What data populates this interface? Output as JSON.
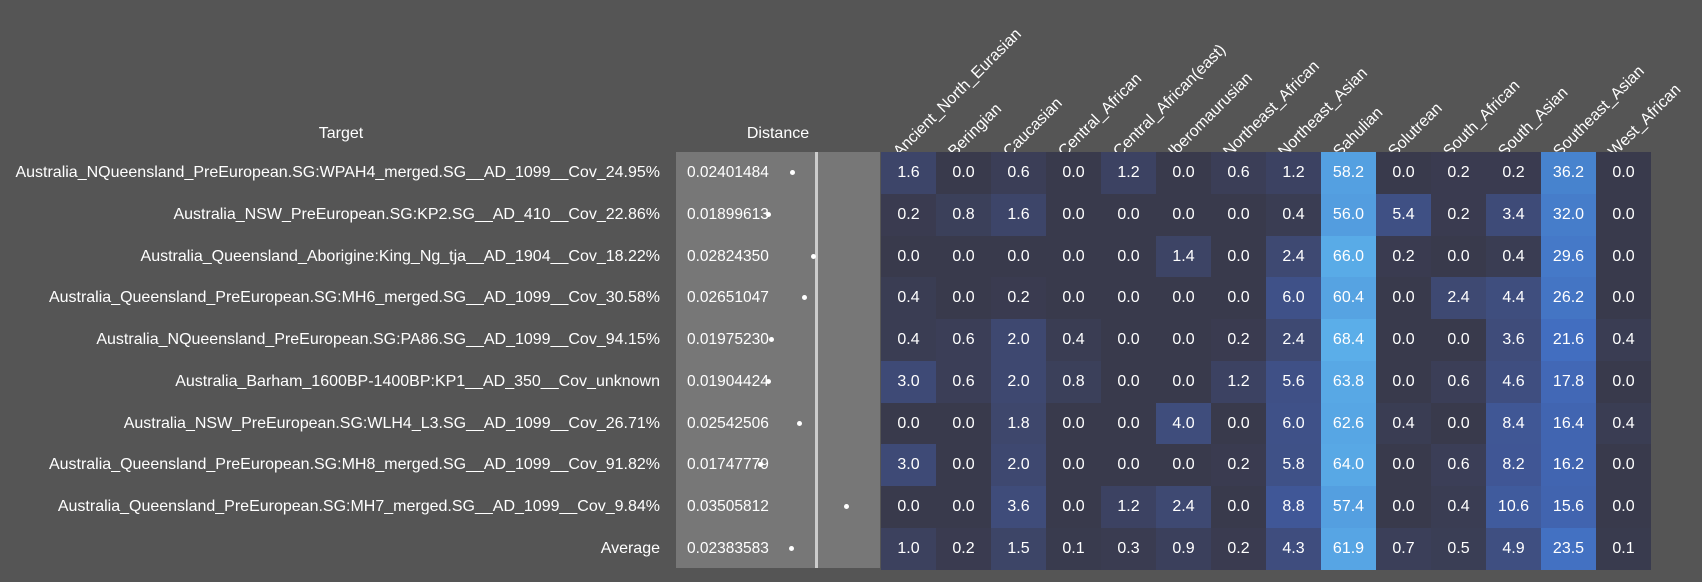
{
  "headers": {
    "target": "Target",
    "distance": "Distance"
  },
  "columns": [
    "Ancient_North_Eurasian",
    "Beringian",
    "Caucasian",
    "Central_African",
    "Central_African(east)",
    "Iberomaurusian",
    "Northeast_African",
    "Northeast_Asian",
    "Sahulian",
    "Solutrean",
    "South_African",
    "South_Asian",
    "Southeast_Asian",
    "West_African"
  ],
  "distance_axis": {
    "min": 0.0,
    "max": 0.042
  },
  "rows": [
    {
      "target": "Australia_NQueensland_PreEuropean.SG:WPAH4_merged.SG__AD_1099__Cov_24.95%",
      "distance": "0.02401484",
      "values": [
        "1.6",
        "0.0",
        "0.6",
        "0.0",
        "1.2",
        "0.0",
        "0.6",
        "1.2",
        "58.2",
        "0.0",
        "0.2",
        "0.2",
        "36.2",
        "0.0"
      ]
    },
    {
      "target": "Australia_NSW_PreEuropean.SG:KP2.SG__AD_410__Cov_22.86%",
      "distance": "0.01899613",
      "values": [
        "0.2",
        "0.8",
        "1.6",
        "0.0",
        "0.0",
        "0.0",
        "0.0",
        "0.4",
        "56.0",
        "5.4",
        "0.2",
        "3.4",
        "32.0",
        "0.0"
      ]
    },
    {
      "target": "Australia_Queensland_Aborigine:King_Ng_tja__AD_1904__Cov_18.22%",
      "distance": "0.02824350",
      "values": [
        "0.0",
        "0.0",
        "0.0",
        "0.0",
        "0.0",
        "1.4",
        "0.0",
        "2.4",
        "66.0",
        "0.2",
        "0.0",
        "0.4",
        "29.6",
        "0.0"
      ]
    },
    {
      "target": "Australia_Queensland_PreEuropean.SG:MH6_merged.SG__AD_1099__Cov_30.58%",
      "distance": "0.02651047",
      "values": [
        "0.4",
        "0.0",
        "0.2",
        "0.0",
        "0.0",
        "0.0",
        "0.0",
        "6.0",
        "60.4",
        "0.0",
        "2.4",
        "4.4",
        "26.2",
        "0.0"
      ]
    },
    {
      "target": "Australia_NQueensland_PreEuropean.SG:PA86.SG__AD_1099__Cov_94.15%",
      "distance": "0.01975230",
      "values": [
        "0.4",
        "0.6",
        "2.0",
        "0.4",
        "0.0",
        "0.0",
        "0.2",
        "2.4",
        "68.4",
        "0.0",
        "0.0",
        "3.6",
        "21.6",
        "0.4"
      ]
    },
    {
      "target": "Australia_Barham_1600BP-1400BP:KP1__AD_350__Cov_unknown",
      "distance": "0.01904424",
      "values": [
        "3.0",
        "0.6",
        "2.0",
        "0.8",
        "0.0",
        "0.0",
        "1.2",
        "5.6",
        "63.8",
        "0.0",
        "0.6",
        "4.6",
        "17.8",
        "0.0"
      ]
    },
    {
      "target": "Australia_NSW_PreEuropean.SG:WLH4_L3.SG__AD_1099__Cov_26.71%",
      "distance": "0.02542506",
      "values": [
        "0.0",
        "0.0",
        "1.8",
        "0.0",
        "0.0",
        "4.0",
        "0.0",
        "6.0",
        "62.6",
        "0.4",
        "0.0",
        "8.4",
        "16.4",
        "0.4"
      ]
    },
    {
      "target": "Australia_Queensland_PreEuropean.SG:MH8_merged.SG__AD_1099__Cov_91.82%",
      "distance": "0.01747779",
      "values": [
        "3.0",
        "0.0",
        "2.0",
        "0.0",
        "0.0",
        "0.0",
        "0.2",
        "5.8",
        "64.0",
        "0.0",
        "0.6",
        "8.2",
        "16.2",
        "0.0"
      ]
    },
    {
      "target": "Australia_Queensland_PreEuropean.SG:MH7_merged.SG__AD_1099__Cov_9.84%",
      "distance": "0.03505812",
      "values": [
        "0.0",
        "0.0",
        "3.6",
        "0.0",
        "1.2",
        "2.4",
        "0.0",
        "8.8",
        "57.4",
        "0.0",
        "0.4",
        "10.6",
        "15.6",
        "0.0"
      ]
    },
    {
      "target": "Average",
      "distance": "0.02383583",
      "values": [
        "1.0",
        "0.2",
        "1.5",
        "0.1",
        "0.3",
        "0.9",
        "0.2",
        "4.3",
        "61.9",
        "0.7",
        "0.5",
        "4.9",
        "23.5",
        "0.1"
      ]
    }
  ]
}
